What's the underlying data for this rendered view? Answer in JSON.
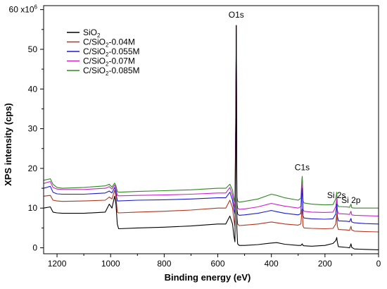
{
  "chart_data": {
    "type": "line",
    "xlabel": "Binding energy (eV)",
    "ylabel": "XPS intensity (cps)",
    "y_multiplier_label": "x10",
    "y_multiplier_exp": "6",
    "xlim": [
      1250,
      0
    ],
    "ylim": [
      -1.5,
      61
    ],
    "x_ticks": [
      1200,
      1000,
      800,
      600,
      400,
      200,
      0
    ],
    "y_ticks": [
      0,
      10,
      20,
      30,
      40,
      50,
      60
    ],
    "legend_position": "top-left",
    "annotations": [
      {
        "text": "O1s",
        "x": 531,
        "y": 58
      },
      {
        "text": "C1s",
        "x": 285,
        "y": 19.5
      },
      {
        "text": "Si 2s",
        "x": 157,
        "y": 12.5
      },
      {
        "text": "Si 2p",
        "x": 103,
        "y": 11.3
      }
    ],
    "x": [
      1250,
      1225,
      1215,
      1200,
      1180,
      1100,
      1020,
      1005,
      995,
      985,
      980,
      975,
      970,
      900,
      800,
      700,
      600,
      570,
      555,
      545,
      540,
      536,
      533,
      531,
      529,
      526,
      520,
      500,
      450,
      400,
      380,
      350,
      300,
      290,
      286,
      285,
      284,
      282,
      278,
      250,
      200,
      170,
      160,
      156,
      154,
      150,
      120,
      108,
      103,
      100,
      90,
      50,
      0
    ],
    "series": [
      {
        "name": "SiO2",
        "color": "#000000",
        "values": [
          10.0,
          10.3,
          9.0,
          8.8,
          8.7,
          8.7,
          9.0,
          11.0,
          10.0,
          13.0,
          11.0,
          6.0,
          4.8,
          5.0,
          5.2,
          5.5,
          6.0,
          6.0,
          8.0,
          6.0,
          3.0,
          1.5,
          25.0,
          56.0,
          5.0,
          1.0,
          0.6,
          0.6,
          0.8,
          1.2,
          1.3,
          0.9,
          0.6,
          0.6,
          0.9,
          1.0,
          0.9,
          0.6,
          0.5,
          0.4,
          0.6,
          1.1,
          1.8,
          2.6,
          1.5,
          0.3,
          0.1,
          0.0,
          1.0,
          0.1,
          -0.3,
          -0.4,
          -0.5
        ]
      },
      {
        "name": "C/SiO2-0.04M",
        "color": "#b5341c",
        "values": [
          13.0,
          13.2,
          12.0,
          11.8,
          11.7,
          11.8,
          12.0,
          12.8,
          12.3,
          14.5,
          12.8,
          9.0,
          8.8,
          9.0,
          9.2,
          9.5,
          10.0,
          10.0,
          12.0,
          10.0,
          7.0,
          5.5,
          28.0,
          56.0,
          8.0,
          6.0,
          5.6,
          5.7,
          6.0,
          6.5,
          6.3,
          6.0,
          5.7,
          6.0,
          9.5,
          9.8,
          9.0,
          5.5,
          5.0,
          4.9,
          4.8,
          4.9,
          6.0,
          8.5,
          5.5,
          4.6,
          4.5,
          4.4,
          5.4,
          4.5,
          4.2,
          4.1,
          4.0
        ]
      },
      {
        "name": "C/SiO2-0.055M",
        "color": "#1c1cd6",
        "values": [
          15.0,
          15.5,
          14.0,
          13.6,
          13.5,
          13.5,
          13.8,
          14.3,
          13.8,
          15.2,
          14.0,
          11.8,
          11.8,
          12.0,
          12.1,
          12.3,
          12.6,
          12.6,
          14.0,
          12.0,
          9.5,
          8.5,
          30.0,
          56.0,
          10.0,
          8.5,
          8.2,
          8.3,
          8.7,
          9.4,
          9.1,
          8.7,
          8.3,
          8.6,
          14.5,
          15.0,
          13.5,
          8.0,
          7.5,
          7.3,
          7.2,
          7.3,
          8.5,
          11.0,
          8.0,
          6.8,
          6.7,
          6.6,
          7.4,
          6.5,
          6.3,
          6.1,
          6.0
        ]
      },
      {
        "name": "C/SiO2-0.07M",
        "color": "#cc22cc",
        "values": [
          16.2,
          16.7,
          15.2,
          14.8,
          14.7,
          14.7,
          15.0,
          15.4,
          14.8,
          15.8,
          15.0,
          13.2,
          13.1,
          13.2,
          13.3,
          13.5,
          13.8,
          13.8,
          15.2,
          13.2,
          11.0,
          10.0,
          31.0,
          56.0,
          11.5,
          10.0,
          9.7,
          9.8,
          10.3,
          11.2,
          10.9,
          10.5,
          10.0,
          10.4,
          16.0,
          16.5,
          15.0,
          9.7,
          9.2,
          9.0,
          8.9,
          9.0,
          10.3,
          12.5,
          9.5,
          8.6,
          8.5,
          8.4,
          9.2,
          8.3,
          8.2,
          8.1,
          8.0
        ]
      },
      {
        "name": "C/SiO2-0.085M",
        "color": "#2e8b1e",
        "values": [
          17.0,
          17.4,
          16.0,
          15.2,
          15.0,
          15.2,
          15.6,
          16.0,
          15.3,
          16.3,
          15.6,
          14.2,
          14.0,
          14.2,
          14.4,
          14.6,
          15.0,
          15.0,
          16.0,
          14.5,
          12.5,
          11.5,
          32.0,
          56.0,
          13.0,
          11.8,
          11.5,
          11.7,
          12.3,
          13.5,
          13.2,
          12.6,
          12.0,
          12.5,
          17.3,
          18.0,
          16.5,
          11.8,
          11.3,
          11.0,
          10.8,
          10.9,
          12.3,
          14.0,
          11.0,
          10.4,
          10.3,
          10.2,
          11.0,
          10.1,
          10.0,
          10.0,
          10.0
        ]
      }
    ],
    "legend": [
      {
        "pre": "SiO",
        "sub": "2",
        "post": ""
      },
      {
        "pre": "C/SiO",
        "sub": "2",
        "post": "-0.04M"
      },
      {
        "pre": "C/SiO",
        "sub": "2",
        "post": "-0.055M"
      },
      {
        "pre": "C/SiO",
        "sub": "2",
        "post": "-0.07M"
      },
      {
        "pre": "C/SiO",
        "sub": "2",
        "post": "-0.085M"
      }
    ]
  }
}
